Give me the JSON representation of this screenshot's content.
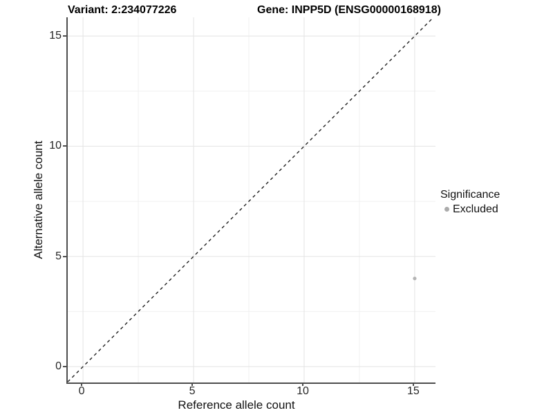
{
  "titles": {
    "variant": "Variant: 2:234077226",
    "gene": "Gene: INPP5D (ENSG00000168918)"
  },
  "legend": {
    "title": "Significance",
    "items": [
      {
        "label": "Excluded",
        "color": "#ababab"
      }
    ]
  },
  "colors": {
    "background": "#ffffff",
    "axis_line": "#4d4d4d",
    "major_grid": "#e3e3e3",
    "minor_grid": "#f0f0f0",
    "identity_line": "#1f1f1f",
    "point_excluded": "#b4b4b4",
    "text": "#000000"
  },
  "chart_data": {
    "type": "scatter",
    "title": "Variant: 2:234077226  —  Gene: INPP5D (ENSG00000168918)",
    "xlabel": "Reference allele count",
    "ylabel": "Alternative allele count",
    "xlim": [
      -0.69,
      15.94
    ],
    "ylim": [
      -0.72,
      15.85
    ],
    "x_major_ticks": [
      0,
      5,
      10,
      15
    ],
    "y_major_ticks": [
      0,
      5,
      10,
      15
    ],
    "x_minor_ticks": [
      2.5,
      7.5,
      12.5
    ],
    "y_minor_ticks": [
      2.5,
      7.5,
      12.5
    ],
    "grid": true,
    "legend_position": "right",
    "legend_title": "Significance",
    "series": [
      {
        "name": "Excluded",
        "color": "#b4b4b4",
        "points": [
          {
            "x": 15,
            "y": 4
          }
        ]
      }
    ],
    "reference_line": {
      "equation": "y = x",
      "style": "dashed",
      "color": "#1f1f1f"
    }
  }
}
